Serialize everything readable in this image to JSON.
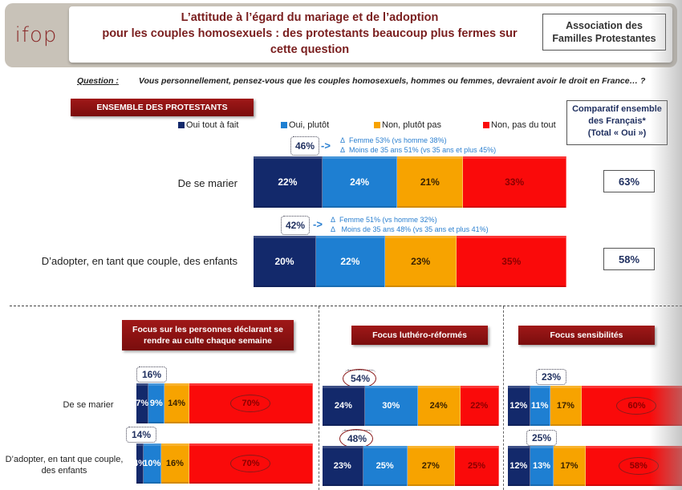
{
  "header": {
    "logo": "ifop",
    "title_lines": [
      "L’attitude à l’égard du mariage et de l’adoption",
      "pour les couples homosexuels : des protestants beaucoup plus fermes sur",
      "cette question"
    ],
    "org_lines": [
      "Association des",
      "Familles Protestantes"
    ]
  },
  "question": {
    "label": "Question :",
    "text": "Vous personnellement, pensez-vous que les couples homosexuels, hommes ou femmes, devraient avoir le droit en France… ?"
  },
  "colors": {
    "oui_tout_a_fait": "#13296b",
    "oui_plutot": "#1e7fd2",
    "non_plutot_pas": "#f7a300",
    "non_pas_du_tout": "#fa0a0a",
    "label_red": "#8a1212",
    "delta_blue": "#2a7fd0"
  },
  "legend": [
    "Oui tout à fait",
    "Oui, plutôt",
    "Non, plutôt pas",
    "Non, pas du tout"
  ],
  "comparatif": {
    "title_lines": [
      "Comparatif ensemble",
      "des Français*",
      "(Total « Oui »)"
    ],
    "values": [
      "63%",
      "58%"
    ]
  },
  "chart_data": [
    {
      "type": "bar",
      "stacked": true,
      "orientation": "horizontal",
      "title": "ENSEMBLE DES PROTESTANTS",
      "categories": [
        "De se marier",
        "D’adopter, en tant que couple, des enfants"
      ],
      "series": [
        {
          "name": "Oui tout à fait",
          "values": [
            22,
            20
          ]
        },
        {
          "name": "Oui, plutôt",
          "values": [
            24,
            22
          ]
        },
        {
          "name": "Non, plutôt pas",
          "values": [
            21,
            23
          ]
        },
        {
          "name": "Non, pas du tout",
          "values": [
            33,
            35
          ]
        }
      ],
      "totals_oui": [
        "46%",
        "42%"
      ],
      "annotations": [
        [
          "Femme 53% (vs homme 38%)",
          "Moins de 35 ans 51% (vs  35 ans et plus 45%)"
        ],
        [
          "Femme 51% (vs homme 32%)",
          "Moins de 35 ans  48% (vs  35 ans et plus 41%)"
        ]
      ],
      "comparatif_total_oui": [
        "63%",
        "58%"
      ]
    },
    {
      "type": "bar",
      "stacked": true,
      "orientation": "horizontal",
      "title": "Focus sur les personnes déclarant se rendre au culte chaque semaine",
      "categories": [
        "De se marier",
        "D’adopter, en tant que couple, des enfants"
      ],
      "series": [
        {
          "name": "Oui tout à fait",
          "values": [
            7,
            4
          ]
        },
        {
          "name": "Oui, plutôt",
          "values": [
            9,
            10
          ]
        },
        {
          "name": "Non, plutôt pas",
          "values": [
            14,
            16
          ]
        },
        {
          "name": "Non, pas du tout",
          "values": [
            70,
            70
          ]
        }
      ],
      "totals_oui": [
        "16%",
        "14%"
      ]
    },
    {
      "type": "bar",
      "stacked": true,
      "orientation": "horizontal",
      "title": "Focus luthéro-réformés",
      "categories": [
        "De se marier",
        "D’adopter, en tant que couple, des enfants"
      ],
      "series": [
        {
          "name": "Oui tout à fait",
          "values": [
            24,
            23
          ]
        },
        {
          "name": "Oui, plutôt",
          "values": [
            30,
            25
          ]
        },
        {
          "name": "Non, plutôt pas",
          "values": [
            24,
            27
          ]
        },
        {
          "name": "Non, pas du tout",
          "values": [
            22,
            25
          ]
        }
      ],
      "totals_oui": [
        "54%",
        "48%"
      ]
    },
    {
      "type": "bar",
      "stacked": true,
      "orientation": "horizontal",
      "title": "Focus sensibilités",
      "categories": [
        "De se marier",
        "D’adopter, en tant que couple, des enfants"
      ],
      "series": [
        {
          "name": "Oui tout à fait",
          "values": [
            12,
            12
          ]
        },
        {
          "name": "Oui, plutôt",
          "values": [
            11,
            13
          ]
        },
        {
          "name": "Non, plutôt pas",
          "values": [
            17,
            17
          ]
        },
        {
          "name": "Non, pas du tout",
          "values": [
            60,
            58
          ]
        }
      ],
      "totals_oui": [
        "23%",
        "25%"
      ]
    }
  ],
  "bottom_row_labels": [
    "De se marier",
    "D’adopter, en tant que couple, des enfants"
  ],
  "delta_symbol": "Δ",
  "arrow_symbol": "->"
}
